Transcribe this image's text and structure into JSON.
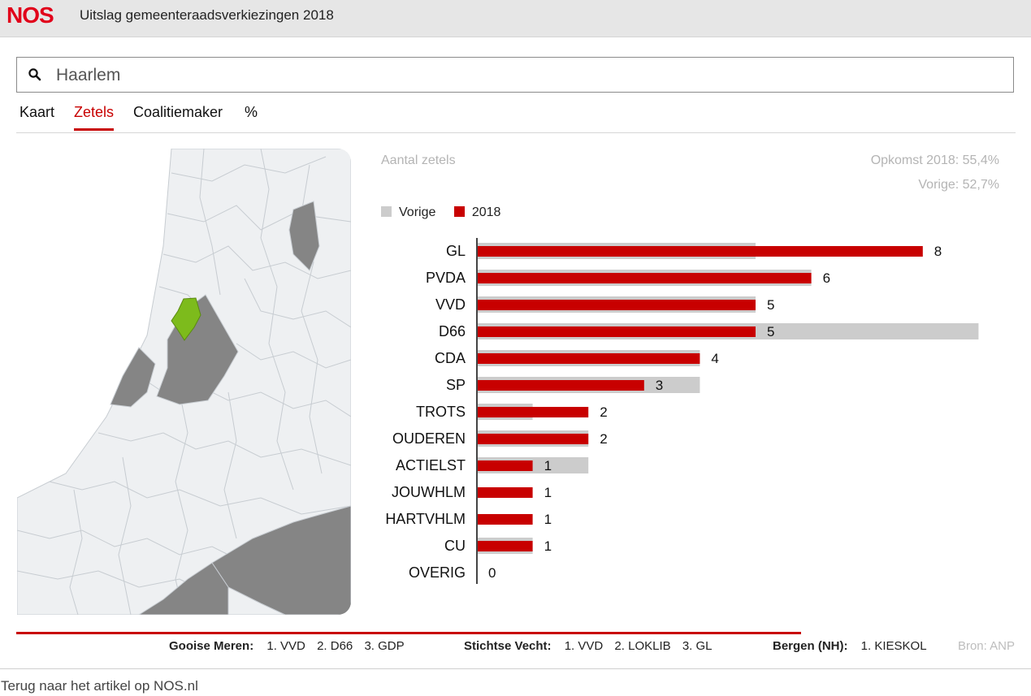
{
  "header": {
    "logo": "NOS",
    "title": "Uitslag gemeenteraadsverkiezingen 2018"
  },
  "search": {
    "value": "Haarlem",
    "placeholder": ""
  },
  "tabs": [
    {
      "label": "Kaart",
      "active": false
    },
    {
      "label": "Zetels",
      "active": true
    },
    {
      "label": "Coalitiemaker",
      "active": false
    },
    {
      "label": "%",
      "active": false
    }
  ],
  "colors": {
    "accent": "#c80000",
    "previous": "#cccccc",
    "highlight_municipality": "#7dbb1c",
    "map_dark": "#858585"
  },
  "chart_data": {
    "type": "bar",
    "orientation": "horizontal",
    "title": "Aantal zetels",
    "turnout": [
      "Opkomst 2018: 55,4%",
      "Vorige: 52,7%"
    ],
    "legend": [
      "Vorige",
      "2018"
    ],
    "categories": [
      "GL",
      "PVDA",
      "VVD",
      "D66",
      "CDA",
      "SP",
      "TROTS",
      "OUDEREN",
      "ACTIELST",
      "JOUWHLM",
      "HARTVHLM",
      "CU",
      "OVERIG"
    ],
    "series": [
      {
        "name": "Vorige",
        "values": [
          5,
          6,
          5,
          9,
          4,
          4,
          1,
          2,
          2,
          0,
          0,
          1,
          0
        ]
      },
      {
        "name": "2018",
        "values": [
          8,
          6,
          5,
          5,
          4,
          3,
          2,
          2,
          1,
          1,
          1,
          1,
          0
        ]
      }
    ],
    "xlim": [
      0,
      9
    ]
  },
  "results": [
    {
      "municipality": "Gooise Meren:",
      "parties": [
        "1. VVD",
        "2. D66",
        "3. GDP"
      ]
    },
    {
      "municipality": "Stichtse Vecht:",
      "parties": [
        "1. VVD",
        "2. LOKLIB",
        "3. GL"
      ]
    },
    {
      "municipality": "Bergen (NH):",
      "parties": [
        "1. KIESKOL"
      ]
    }
  ],
  "source": "Bron: ANP",
  "back_link": "Terug naar het artikel op NOS.nl"
}
